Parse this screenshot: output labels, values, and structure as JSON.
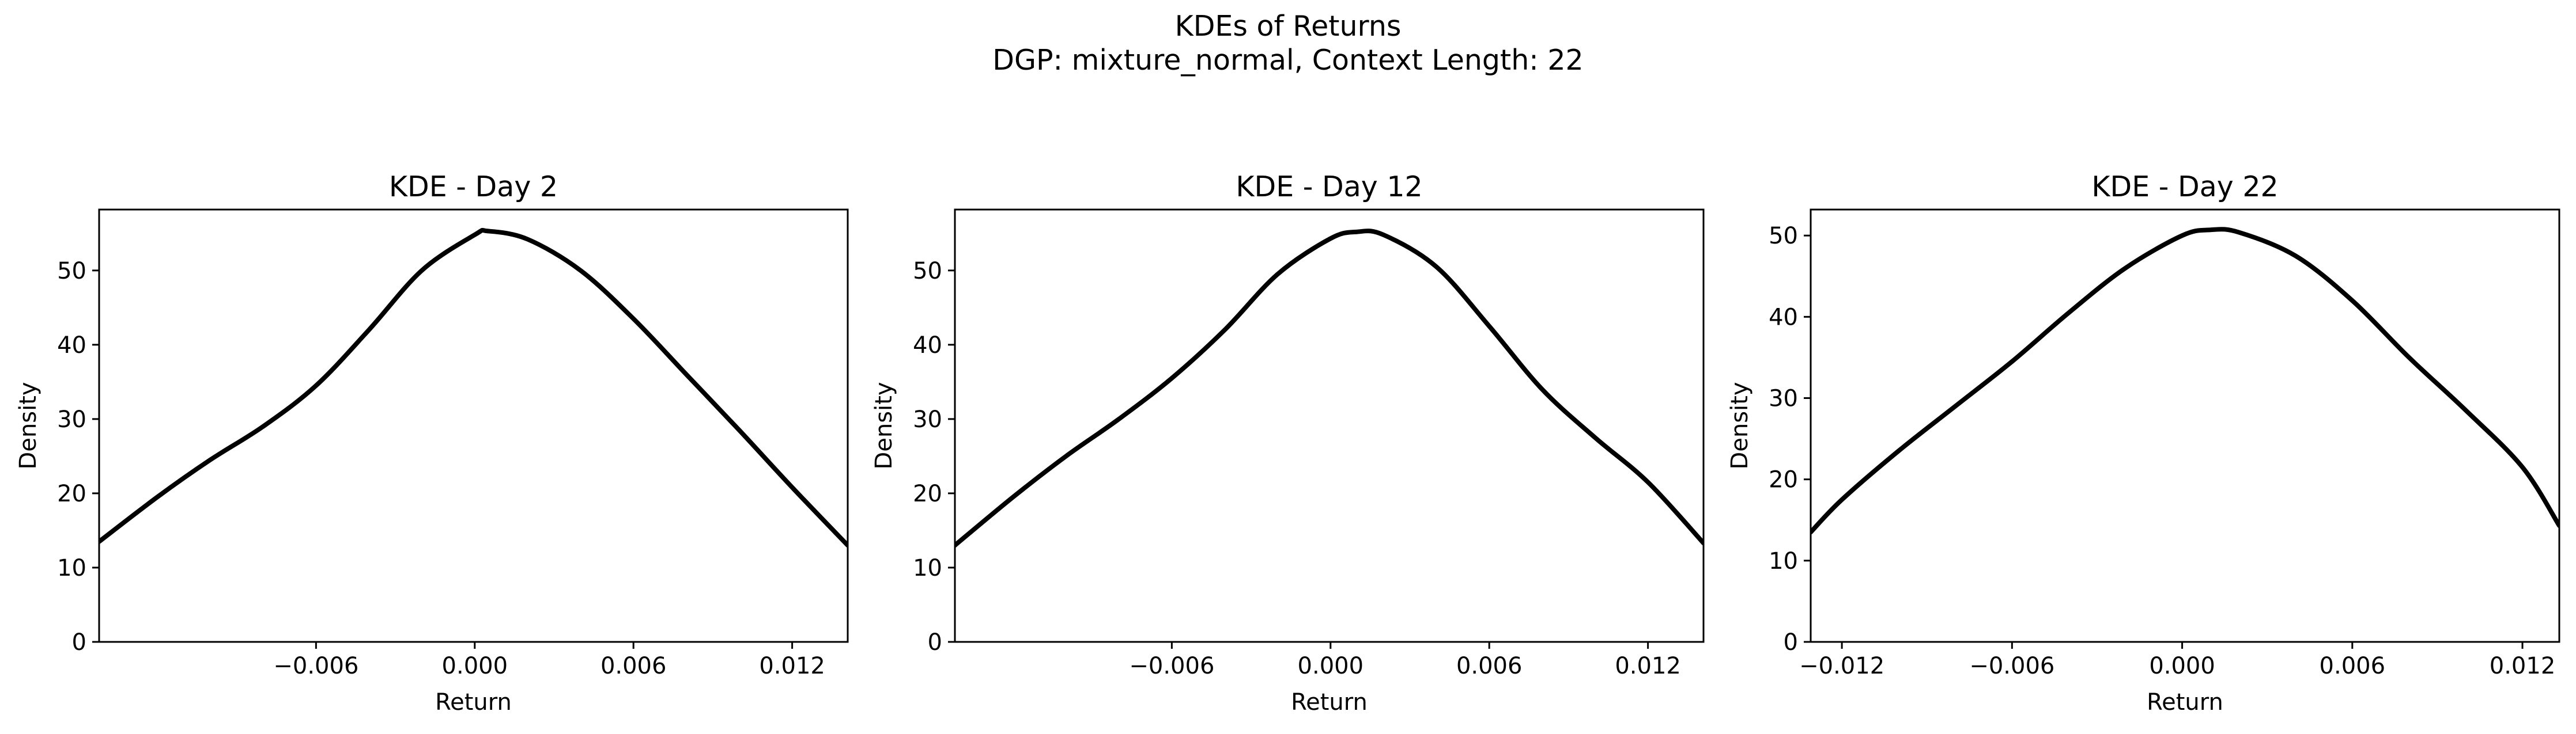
{
  "figure": {
    "title_line1": "KDEs of Returns",
    "title_line2": "DGP: mixture_normal, Context Length: 22"
  },
  "chart_data": [
    {
      "type": "line",
      "title": "KDE - Day 2",
      "xlabel": "Return",
      "ylabel": "Density",
      "xlim": [
        -0.0142,
        0.0141
      ],
      "ylim": [
        0,
        58.2
      ],
      "xticks": [
        -0.006,
        0.0,
        0.006,
        0.012
      ],
      "xtick_labels": [
        "−0.006",
        "0.000",
        "0.006",
        "0.012"
      ],
      "yticks": [
        0,
        10,
        20,
        30,
        40,
        50
      ],
      "ytick_labels": [
        "0",
        "10",
        "20",
        "30",
        "40",
        "50"
      ],
      "series": [
        {
          "color": "#000000",
          "x": [
            -0.0142,
            -0.012,
            -0.01,
            -0.008,
            -0.006,
            -0.004,
            -0.002,
            0.0,
            0.0005,
            0.002,
            0.004,
            0.006,
            0.008,
            0.01,
            0.012,
            0.0141
          ],
          "y": [
            13.5,
            19.5,
            24.5,
            29.0,
            34.5,
            42.0,
            50.0,
            54.8,
            55.3,
            54.2,
            50.0,
            43.5,
            36.0,
            28.5,
            20.8,
            13.0
          ]
        }
      ]
    },
    {
      "type": "line",
      "title": "KDE - Day 12",
      "xlabel": "Return",
      "ylabel": "Density",
      "xlim": [
        -0.0142,
        0.0141
      ],
      "ylim": [
        0,
        58.2
      ],
      "xticks": [
        -0.006,
        0.0,
        0.006,
        0.012
      ],
      "xtick_labels": [
        "−0.006",
        "0.000",
        "0.006",
        "0.012"
      ],
      "yticks": [
        0,
        10,
        20,
        30,
        40,
        50
      ],
      "ytick_labels": [
        "0",
        "10",
        "20",
        "30",
        "40",
        "50"
      ],
      "series": [
        {
          "color": "#000000",
          "x": [
            -0.0142,
            -0.012,
            -0.01,
            -0.008,
            -0.006,
            -0.004,
            -0.002,
            0.0,
            0.001,
            0.002,
            0.004,
            0.006,
            0.008,
            0.01,
            0.012,
            0.0141
          ],
          "y": [
            13.0,
            19.5,
            25.0,
            30.0,
            35.5,
            42.0,
            49.5,
            54.3,
            55.2,
            54.8,
            50.5,
            42.5,
            34.0,
            27.5,
            21.5,
            13.3
          ]
        }
      ]
    },
    {
      "type": "line",
      "title": "KDE - Day 22",
      "xlabel": "Return",
      "ylabel": "Density",
      "xlim": [
        -0.0131,
        0.0133
      ],
      "ylim": [
        0,
        53.2
      ],
      "xticks": [
        -0.012,
        -0.006,
        0.0,
        0.006,
        0.012
      ],
      "xtick_labels": [
        "−0.012",
        "−0.006",
        "0.000",
        "0.006",
        "0.012"
      ],
      "yticks": [
        0,
        10,
        20,
        30,
        40,
        50
      ],
      "ytick_labels": [
        "0",
        "10",
        "20",
        "30",
        "40",
        "50"
      ],
      "series": [
        {
          "color": "#000000",
          "x": [
            -0.0131,
            -0.012,
            -0.01,
            -0.008,
            -0.006,
            -0.004,
            -0.002,
            0.0,
            0.001,
            0.002,
            0.004,
            0.006,
            0.008,
            0.01,
            0.012,
            0.0133
          ],
          "y": [
            13.5,
            17.5,
            23.5,
            29.0,
            34.5,
            40.5,
            46.0,
            50.0,
            50.7,
            50.4,
            47.5,
            42.0,
            35.0,
            28.5,
            21.5,
            14.3
          ]
        }
      ]
    }
  ]
}
